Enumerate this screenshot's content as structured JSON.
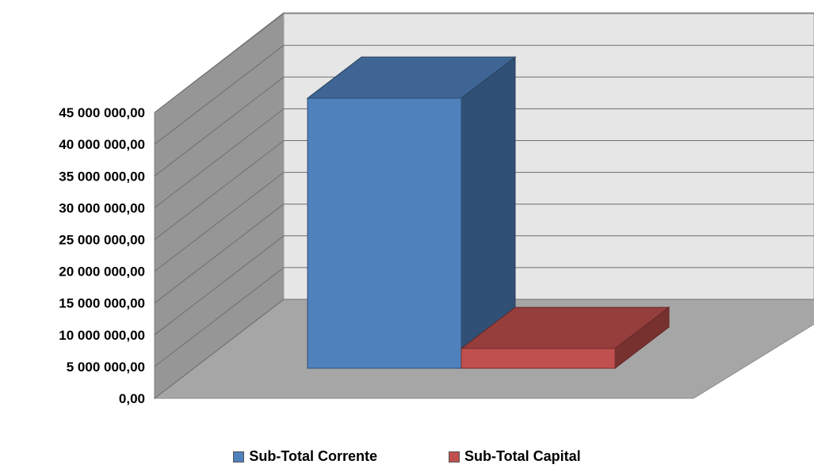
{
  "chart_data": {
    "type": "bar",
    "categories": [
      ""
    ],
    "series": [
      {
        "name": "Sub-Total Corrente",
        "values": [
          42500000
        ],
        "color": "#4F81BD"
      },
      {
        "name": "Sub-Total Capital",
        "values": [
          3100000
        ],
        "color": "#C0504D"
      }
    ],
    "ylim": [
      0,
      45000000
    ],
    "yticks": [
      "0,00",
      "5 000 000,00",
      "10 000 000,00",
      "15 000 000,00",
      "20 000 000,00",
      "25 000 000,00",
      "30 000 000,00",
      "35 000 000,00",
      "40 000 000,00",
      "45 000 000,00"
    ],
    "grid": true,
    "legend": "bottom",
    "three_d": true
  }
}
